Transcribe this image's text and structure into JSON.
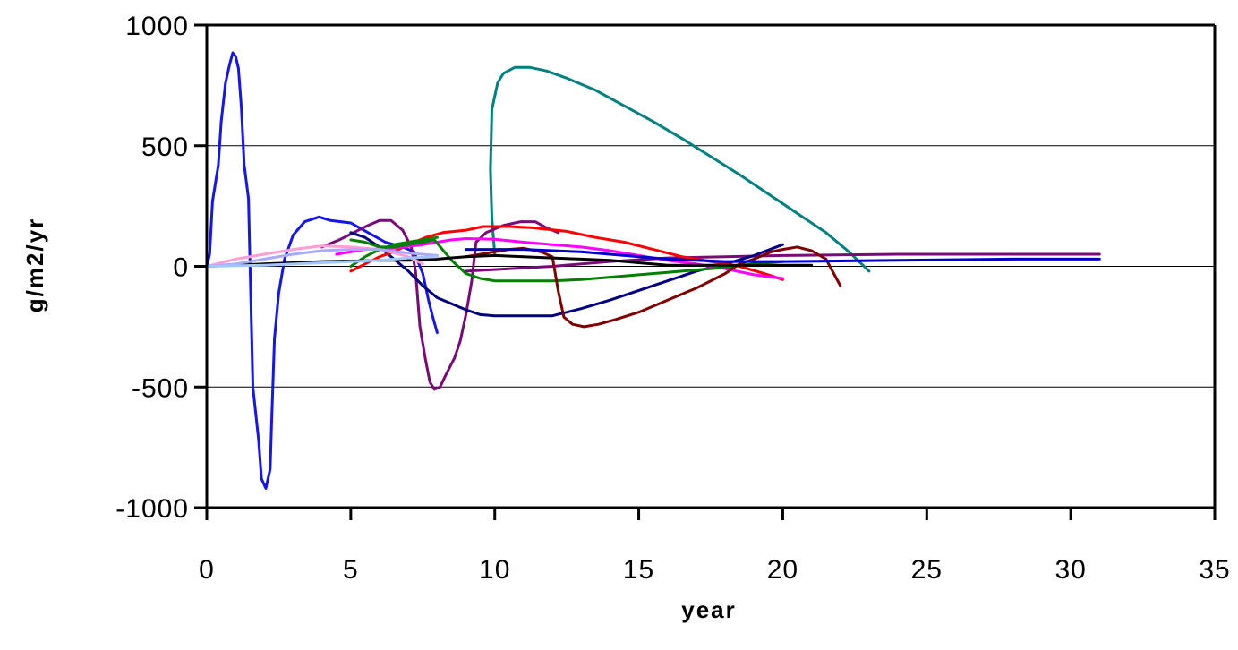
{
  "chart_data": {
    "type": "line",
    "title": "",
    "xlabel": "year",
    "ylabel": "g/m2/yr",
    "xlim": [
      0,
      35
    ],
    "ylim": [
      -1000,
      1000
    ],
    "x_ticks": [
      0,
      5,
      10,
      15,
      20,
      25,
      30,
      35
    ],
    "y_ticks": [
      1000,
      500,
      0,
      -500,
      -1000
    ],
    "x_tick_labels": [
      "0",
      "5",
      "10",
      "15",
      "20",
      "25",
      "30",
      "35"
    ],
    "y_tick_labels": [
      "1000",
      "500",
      "0",
      "-500",
      "-1000"
    ],
    "grid": "horizontal major",
    "legend": "none",
    "series": [
      {
        "color": "#1515ee",
        "points": [
          [
            0,
            0
          ],
          [
            0.1,
            50
          ],
          [
            0.2,
            270
          ],
          [
            0.4,
            420
          ],
          [
            0.5,
            600
          ],
          [
            0.65,
            760
          ],
          [
            0.8,
            840
          ],
          [
            0.9,
            885
          ],
          [
            1.0,
            870
          ],
          [
            1.1,
            820
          ],
          [
            1.2,
            660
          ],
          [
            1.3,
            420
          ],
          [
            1.45,
            280
          ],
          [
            1.6,
            -500
          ],
          [
            1.8,
            -720
          ],
          [
            1.9,
            -880
          ],
          [
            2.05,
            -920
          ],
          [
            2.2,
            -840
          ],
          [
            2.25,
            -650
          ],
          [
            2.35,
            -300
          ],
          [
            2.5,
            -110
          ],
          [
            2.7,
            30
          ],
          [
            3.0,
            130
          ],
          [
            3.4,
            185
          ],
          [
            3.9,
            205
          ],
          [
            4.3,
            190
          ],
          [
            5.0,
            180
          ],
          [
            5.6,
            140
          ],
          [
            6.2,
            100
          ],
          [
            6.8,
            80
          ],
          [
            7.2,
            60
          ],
          [
            7.5,
            -30
          ],
          [
            7.7,
            -140
          ],
          [
            7.85,
            -210
          ],
          [
            8.0,
            -275
          ]
        ]
      },
      {
        "color": "#008080",
        "points": [
          [
            10.0,
            50
          ],
          [
            9.9,
            200
          ],
          [
            9.85,
            400
          ],
          [
            9.9,
            650
          ],
          [
            10.1,
            760
          ],
          [
            10.3,
            800
          ],
          [
            10.7,
            825
          ],
          [
            11.2,
            825
          ],
          [
            11.8,
            810
          ],
          [
            12.5,
            780
          ],
          [
            13.5,
            730
          ],
          [
            14.5,
            665
          ],
          [
            15.5,
            600
          ],
          [
            16.5,
            530
          ],
          [
            17.5,
            455
          ],
          [
            18.5,
            380
          ],
          [
            19.5,
            300
          ],
          [
            20.5,
            220
          ],
          [
            21.5,
            140
          ],
          [
            22.3,
            60
          ],
          [
            23.0,
            -20
          ]
        ]
      },
      {
        "color": "#7a0a7a",
        "points": [
          [
            4.0,
            80
          ],
          [
            4.6,
            110
          ],
          [
            5.1,
            140
          ],
          [
            5.6,
            170
          ],
          [
            6.0,
            190
          ],
          [
            6.4,
            190
          ],
          [
            6.8,
            150
          ],
          [
            7.1,
            80
          ],
          [
            7.25,
            -20
          ],
          [
            7.4,
            -250
          ],
          [
            7.6,
            -390
          ],
          [
            7.75,
            -480
          ],
          [
            7.9,
            -510
          ],
          [
            8.1,
            -500
          ],
          [
            8.3,
            -450
          ],
          [
            8.6,
            -380
          ],
          [
            8.8,
            -310
          ],
          [
            9.0,
            -200
          ],
          [
            9.2,
            -60
          ],
          [
            9.35,
            100
          ],
          [
            9.7,
            140
          ],
          [
            10.3,
            170
          ],
          [
            10.9,
            185
          ],
          [
            11.4,
            185
          ],
          [
            11.8,
            160
          ],
          [
            12.2,
            140
          ]
        ]
      },
      {
        "color": "#7a0a7a",
        "points": [
          [
            9.0,
            -20
          ],
          [
            12.0,
            0
          ],
          [
            14.0,
            20
          ],
          [
            16.0,
            35
          ],
          [
            20.0,
            45
          ],
          [
            24.0,
            50
          ],
          [
            28.0,
            50
          ],
          [
            31.0,
            50
          ]
        ]
      },
      {
        "color": "#000080",
        "points": [
          [
            5.0,
            140
          ],
          [
            5.5,
            120
          ],
          [
            6.0,
            80
          ],
          [
            6.5,
            30
          ],
          [
            7.0,
            -20
          ],
          [
            7.5,
            -80
          ],
          [
            8.0,
            -130
          ],
          [
            9.0,
            -180
          ],
          [
            9.5,
            -200
          ],
          [
            10.0,
            -205
          ],
          [
            11.0,
            -205
          ],
          [
            12.0,
            -205
          ],
          [
            13.0,
            -175
          ],
          [
            14.0,
            -140
          ],
          [
            15.0,
            -100
          ],
          [
            16.0,
            -60
          ],
          [
            17.0,
            -20
          ],
          [
            18.0,
            10
          ],
          [
            19.0,
            45
          ],
          [
            20.0,
            90
          ]
        ]
      },
      {
        "color": "#ff0000",
        "points": [
          [
            5.0,
            -20
          ],
          [
            5.5,
            10
          ],
          [
            6.0,
            40
          ],
          [
            6.5,
            60
          ],
          [
            7.0,
            90
          ],
          [
            7.6,
            120
          ],
          [
            8.2,
            140
          ],
          [
            9.0,
            150
          ],
          [
            9.6,
            165
          ],
          [
            10.5,
            165
          ],
          [
            11.3,
            160
          ],
          [
            12.5,
            145
          ],
          [
            13.5,
            120
          ],
          [
            14.5,
            100
          ],
          [
            15.5,
            70
          ],
          [
            16.5,
            40
          ],
          [
            17.5,
            20
          ],
          [
            18.5,
            0
          ],
          [
            19.5,
            -35
          ],
          [
            20.0,
            -55
          ]
        ]
      },
      {
        "color": "#ff00ff",
        "points": [
          [
            4.5,
            50
          ],
          [
            5.5,
            70
          ],
          [
            6.5,
            75
          ],
          [
            7.5,
            90
          ],
          [
            8.0,
            100
          ],
          [
            8.5,
            110
          ],
          [
            9.0,
            115
          ],
          [
            10.0,
            112
          ],
          [
            11.0,
            100
          ],
          [
            12.0,
            90
          ],
          [
            13.0,
            80
          ],
          [
            14.0,
            65
          ],
          [
            15.0,
            45
          ],
          [
            16.0,
            25
          ],
          [
            17.0,
            10
          ],
          [
            18.0,
            -10
          ],
          [
            19.0,
            -35
          ],
          [
            20.0,
            -50
          ]
        ]
      },
      {
        "color": "#008000",
        "points": [
          [
            5.0,
            110
          ],
          [
            5.5,
            100
          ],
          [
            6.0,
            80
          ],
          [
            6.5,
            80
          ],
          [
            7.0,
            90
          ],
          [
            7.5,
            100
          ],
          [
            7.9,
            110
          ],
          [
            8.5,
            25
          ],
          [
            9.0,
            -30
          ],
          [
            9.5,
            -50
          ],
          [
            10.0,
            -60
          ],
          [
            11.0,
            -60
          ],
          [
            12.0,
            -60
          ],
          [
            13.0,
            -55
          ],
          [
            14.0,
            -45
          ],
          [
            15.0,
            -35
          ],
          [
            16.0,
            -25
          ],
          [
            17.0,
            -15
          ],
          [
            18.0,
            -5
          ],
          [
            19.0,
            10
          ],
          [
            20.0,
            20
          ]
        ]
      },
      {
        "color": "#008000",
        "points": [
          [
            5.0,
            0
          ],
          [
            5.5,
            40
          ],
          [
            6.0,
            70
          ],
          [
            6.5,
            90
          ],
          [
            7.0,
            100
          ],
          [
            7.5,
            110
          ],
          [
            8.0,
            120
          ]
        ]
      },
      {
        "color": "#800000",
        "points": [
          [
            9.0,
            40
          ],
          [
            10.0,
            60
          ],
          [
            10.5,
            70
          ],
          [
            11.0,
            75
          ],
          [
            11.6,
            60
          ],
          [
            12.0,
            40
          ],
          [
            12.2,
            -100
          ],
          [
            12.4,
            -210
          ],
          [
            12.7,
            -240
          ],
          [
            13.1,
            -250
          ],
          [
            13.6,
            -240
          ],
          [
            14.2,
            -220
          ],
          [
            15.0,
            -190
          ],
          [
            16.0,
            -140
          ],
          [
            17.0,
            -90
          ],
          [
            18.0,
            -30
          ],
          [
            18.5,
            10
          ],
          [
            19.0,
            30
          ],
          [
            19.6,
            60
          ],
          [
            20.0,
            70
          ],
          [
            20.5,
            80
          ],
          [
            21.0,
            65
          ],
          [
            21.5,
            30
          ],
          [
            22.0,
            -80
          ]
        ]
      },
      {
        "color": "#000000",
        "points": [
          [
            0,
            0
          ],
          [
            1.0,
            5
          ],
          [
            2.0,
            10
          ],
          [
            3.0,
            15
          ],
          [
            4.0,
            20
          ],
          [
            5.0,
            22
          ],
          [
            6.0,
            25
          ],
          [
            7.0,
            25
          ],
          [
            8.0,
            30
          ],
          [
            9.0,
            40
          ],
          [
            10.0,
            45
          ],
          [
            11.0,
            40
          ],
          [
            12.0,
            35
          ],
          [
            13.0,
            30
          ],
          [
            14.0,
            25
          ],
          [
            15.0,
            15
          ],
          [
            16.0,
            5
          ],
          [
            17.0,
            5
          ],
          [
            18.0,
            5
          ],
          [
            20.0,
            5
          ],
          [
            21.0,
            5
          ]
        ]
      },
      {
        "color": "#ff9fd5",
        "points": [
          [
            0,
            0
          ],
          [
            1.0,
            30
          ],
          [
            2.0,
            50
          ],
          [
            3.0,
            70
          ],
          [
            4.0,
            85
          ],
          [
            5.0,
            80
          ],
          [
            6.0,
            70
          ],
          [
            7.0,
            40
          ],
          [
            7.5,
            10
          ]
        ]
      },
      {
        "color": "#a9a9ff",
        "points": [
          [
            0,
            0
          ],
          [
            1.0,
            10
          ],
          [
            2.0,
            30
          ],
          [
            3.0,
            50
          ],
          [
            4.0,
            65
          ],
          [
            5.0,
            70
          ],
          [
            6.0,
            70
          ],
          [
            7.0,
            55
          ],
          [
            8.0,
            45
          ]
        ]
      },
      {
        "color": "#a0c8ff",
        "points": [
          [
            0,
            0
          ],
          [
            2.0,
            5
          ],
          [
            4.0,
            15
          ],
          [
            6.0,
            25
          ],
          [
            7.0,
            35
          ],
          [
            8.0,
            40
          ]
        ]
      },
      {
        "color": "#0000cc",
        "points": [
          [
            9.0,
            70
          ],
          [
            11.0,
            70
          ],
          [
            13.0,
            60
          ],
          [
            14.0,
            50
          ],
          [
            16.0,
            30
          ],
          [
            18.0,
            20
          ],
          [
            20.0,
            20
          ],
          [
            24.0,
            25
          ],
          [
            28.0,
            30
          ],
          [
            31.0,
            30
          ]
        ]
      }
    ]
  }
}
